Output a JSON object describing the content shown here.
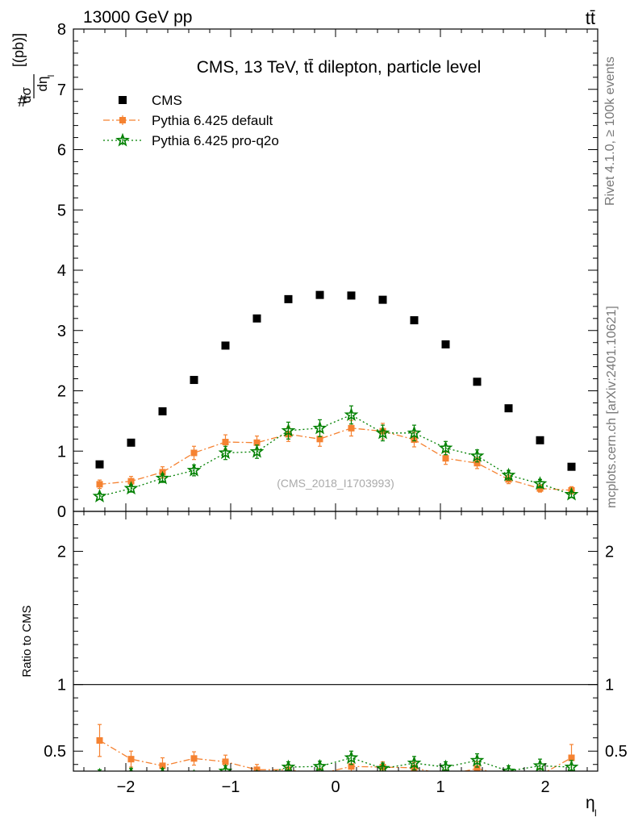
{
  "header": {
    "energy_label": "13000 GeV pp",
    "process_label": "tt̄"
  },
  "side_labels": {
    "rivet": "Rivet 4.1.0, ≥ 100k events",
    "source": "mcplots.cern.ch [arXiv:2401.10621]"
  },
  "chart_data": {
    "type": "scatter",
    "title": "CMS, 13 TeV, tt̄ dilepton, particle level",
    "watermark": "(CMS_2018_I1703993)",
    "ylabel": "#dσ/dη_l [(pb)]",
    "ylabel_parts": {
      "prefix": "#",
      "num": "dσ",
      "den": "dη",
      "sub": "l",
      "unit": "[(pb)]"
    },
    "xlabel": "η_l",
    "xlabel_parts": {
      "main": "η",
      "sub": "l"
    },
    "ratio_ylabel": "Ratio to CMS",
    "xlim": [
      -2.5,
      2.5
    ],
    "ylim": [
      0,
      8
    ],
    "ratio_ylim": [
      0.35,
      2.3
    ],
    "x_ticks": [
      -2,
      -1,
      0,
      1,
      2
    ],
    "x_tick_labels": [
      "−2",
      "−1",
      "0",
      "1",
      "2"
    ],
    "y_ticks": [
      0,
      1,
      2,
      3,
      4,
      5,
      6,
      7,
      8
    ],
    "y_tick_labels": [
      "0",
      "1",
      "2",
      "3",
      "4",
      "5",
      "6",
      "7",
      "8"
    ],
    "ratio_y_ticks": [
      0.5,
      1,
      2
    ],
    "ratio_y_tick_labels": [
      "0.5",
      "1",
      "2"
    ],
    "x": [
      -2.25,
      -1.95,
      -1.65,
      -1.35,
      -1.05,
      -0.75,
      -0.45,
      -0.15,
      0.15,
      0.45,
      0.75,
      1.05,
      1.35,
      1.65,
      1.95,
      2.25
    ],
    "series": [
      {
        "name": "CMS",
        "marker": "square",
        "color": "#000000",
        "values": [
          0.78,
          1.14,
          1.66,
          2.18,
          2.75,
          3.2,
          3.52,
          3.59,
          3.58,
          3.51,
          3.17,
          2.77,
          2.15,
          1.71,
          1.18,
          0.74
        ]
      },
      {
        "name": "Pythia 6.425 default",
        "marker": "square",
        "color": "#f58231",
        "dash": "8,3,2,3",
        "values": [
          0.45,
          0.5,
          0.65,
          0.97,
          1.15,
          1.14,
          1.28,
          1.2,
          1.38,
          1.33,
          1.19,
          0.88,
          0.8,
          0.53,
          0.38,
          0.35
        ],
        "errors": [
          0.07,
          0.08,
          0.09,
          0.11,
          0.12,
          0.11,
          0.12,
          0.12,
          0.13,
          0.13,
          0.12,
          0.1,
          0.09,
          0.07,
          0.06,
          0.06
        ],
        "ratio": [
          0.58,
          0.44,
          0.39,
          0.445,
          0.42,
          0.36,
          0.36,
          0.33,
          0.385,
          0.38,
          0.375,
          0.32,
          0.37,
          0.31,
          0.32,
          0.45
        ],
        "ratio_errors": [
          0.12,
          0.06,
          0.06,
          0.05,
          0.05,
          0.04,
          0.04,
          0.04,
          0.04,
          0.04,
          0.04,
          0.04,
          0.05,
          0.04,
          0.05,
          0.1
        ]
      },
      {
        "name": "Pythia 6.425 pro-q2o",
        "marker": "star",
        "color": "#008000",
        "dash": "2,3",
        "values": [
          0.25,
          0.38,
          0.55,
          0.68,
          0.97,
          0.99,
          1.34,
          1.38,
          1.6,
          1.3,
          1.3,
          1.05,
          0.92,
          0.6,
          0.46,
          0.28
        ],
        "errors": [
          0.05,
          0.06,
          0.07,
          0.09,
          0.11,
          0.11,
          0.14,
          0.14,
          0.15,
          0.13,
          0.13,
          0.11,
          0.1,
          0.08,
          0.07,
          0.05
        ],
        "ratio": [
          0.32,
          0.33,
          0.33,
          0.31,
          0.35,
          0.31,
          0.38,
          0.385,
          0.45,
          0.37,
          0.41,
          0.38,
          0.43,
          0.35,
          0.39,
          0.38
        ],
        "ratio_errors": [
          0.04,
          0.04,
          0.04,
          0.04,
          0.04,
          0.04,
          0.04,
          0.04,
          0.05,
          0.04,
          0.05,
          0.04,
          0.05,
          0.04,
          0.05,
          0.05
        ]
      }
    ],
    "legend_position": "top-left"
  }
}
